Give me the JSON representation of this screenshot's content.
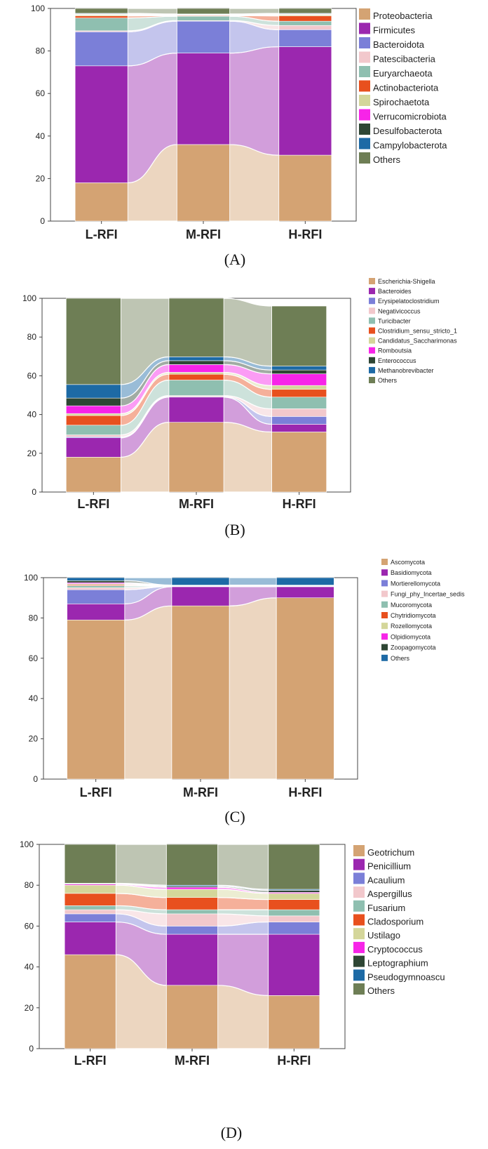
{
  "figure": {
    "panel_labels": [
      "(A)",
      "(B)",
      "(C)",
      "(D)"
    ]
  },
  "chart_data": [
    {
      "type": "area",
      "subtype": "stacked-bar-alluvial",
      "categories": [
        "L-RFI",
        "M-RFI",
        "H-RFI"
      ],
      "ylim": [
        0,
        100
      ],
      "yticks": [
        0,
        20,
        40,
        60,
        80,
        100
      ],
      "legend_position": "right",
      "series": [
        {
          "name": "Proteobacteria",
          "color": "#D4A373",
          "values": [
            18,
            36,
            31
          ]
        },
        {
          "name": "Firmicutes",
          "color": "#9B27AF",
          "values": [
            55,
            43,
            51
          ]
        },
        {
          "name": "Bacteroidota",
          "color": "#7B7FD8",
          "values": [
            16,
            15,
            8
          ]
        },
        {
          "name": "Patescibacteria",
          "color": "#F2C8CC",
          "values": [
            0.5,
            0.3,
            2
          ]
        },
        {
          "name": "Euryarchaeota",
          "color": "#8FBFB0",
          "values": [
            6,
            2,
            2
          ]
        },
        {
          "name": "Actinobacteriota",
          "color": "#E8501E",
          "values": [
            1,
            0.3,
            2.5
          ]
        },
        {
          "name": "Spirochaetota",
          "color": "#D4D69A",
          "values": [
            0.5,
            0.2,
            0.5
          ]
        },
        {
          "name": "Verrucomicrobiota",
          "color": "#F724E8",
          "values": [
            0.2,
            0.2,
            0.2
          ]
        },
        {
          "name": "Desulfobacterota",
          "color": "#2E4634",
          "values": [
            0.2,
            0.2,
            0.2
          ]
        },
        {
          "name": "Campylobacterota",
          "color": "#1D6AA5",
          "values": [
            0.3,
            0.2,
            0.3
          ]
        },
        {
          "name": "Others",
          "color": "#6E7E55",
          "values": [
            2.3,
            2.6,
            2.3
          ]
        }
      ]
    },
    {
      "type": "area",
      "subtype": "stacked-bar-alluvial",
      "categories": [
        "L-RFI",
        "M-RFI",
        "H-RFI"
      ],
      "ylim": [
        0,
        100
      ],
      "yticks": [
        0,
        20,
        40,
        60,
        80,
        100
      ],
      "legend_position": "right",
      "series": [
        {
          "name": "Escherichia-Shigella",
          "color": "#D4A373",
          "values": [
            18,
            36,
            31
          ]
        },
        {
          "name": "Bacteroides",
          "color": "#9B27AF",
          "values": [
            10,
            13,
            4
          ]
        },
        {
          "name": "Erysipelatoclostridium",
          "color": "#7B7FD8",
          "values": [
            0.5,
            0.3,
            4
          ]
        },
        {
          "name": "Negativicoccus",
          "color": "#F2C8CC",
          "values": [
            1,
            0.5,
            4
          ]
        },
        {
          "name": "Turicibacter",
          "color": "#8FBFB0",
          "values": [
            5,
            8,
            6
          ]
        },
        {
          "name": "Clostridium_sensu_stricto_1",
          "color": "#E8501E",
          "values": [
            5,
            3,
            4
          ]
        },
        {
          "name": "Candidatus_Saccharimonas",
          "color": "#D4D69A",
          "values": [
            1,
            1,
            2
          ]
        },
        {
          "name": "Romboutsia",
          "color": "#F724E8",
          "values": [
            4,
            4,
            6
          ]
        },
        {
          "name": "Enterococcus",
          "color": "#2E4634",
          "values": [
            4,
            2,
            2
          ]
        },
        {
          "name": "Methanobrevibacter",
          "color": "#1D6AA5",
          "values": [
            7,
            2,
            2
          ]
        },
        {
          "name": "Others",
          "color": "#6E7E55",
          "values": [
            44.5,
            30.2,
            31
          ]
        }
      ]
    },
    {
      "type": "area",
      "subtype": "stacked-bar-alluvial",
      "categories": [
        "L-RFI",
        "M-RFI",
        "H-RFI"
      ],
      "ylim": [
        0,
        100
      ],
      "yticks": [
        0,
        20,
        40,
        60,
        80,
        100
      ],
      "legend_position": "right",
      "series": [
        {
          "name": "Ascomycota",
          "color": "#D4A373",
          "values": [
            79,
            86,
            90
          ]
        },
        {
          "name": "Basidiomycota",
          "color": "#9B27AF",
          "values": [
            8,
            9.5,
            5.5
          ]
        },
        {
          "name": "Mortierellomycota",
          "color": "#7B7FD8",
          "values": [
            7,
            0.2,
            0.2
          ]
        },
        {
          "name": "Fungi_phy_Incertae_sedis",
          "color": "#F2C8CC",
          "values": [
            1,
            0.1,
            0.1
          ]
        },
        {
          "name": "Mucoromycota",
          "color": "#8FBFB0",
          "values": [
            1,
            0.1,
            0.1
          ]
        },
        {
          "name": "Chytridiomycota",
          "color": "#E8501E",
          "values": [
            0.5,
            0.1,
            0.1
          ]
        },
        {
          "name": "Rozellomycota",
          "color": "#D4D69A",
          "values": [
            0.5,
            0.1,
            0.1
          ]
        },
        {
          "name": "Olpidiomycota",
          "color": "#F724E8",
          "values": [
            0.5,
            0.1,
            0.1
          ]
        },
        {
          "name": "Zoopagomycota",
          "color": "#2E4634",
          "values": [
            1,
            0.1,
            0.1
          ]
        },
        {
          "name": "Others",
          "color": "#1D6AA5",
          "values": [
            1.5,
            3.7,
            3.7
          ]
        }
      ]
    },
    {
      "type": "area",
      "subtype": "stacked-bar-alluvial",
      "categories": [
        "L-RFI",
        "M-RFI",
        "H-RFI"
      ],
      "ylim": [
        0,
        100
      ],
      "yticks": [
        0,
        20,
        40,
        60,
        80,
        100
      ],
      "legend_position": "right",
      "series": [
        {
          "name": "Geotrichum",
          "color": "#D4A373",
          "values": [
            46,
            31,
            26
          ]
        },
        {
          "name": "Penicillium",
          "color": "#9B27AF",
          "values": [
            16,
            25,
            30
          ]
        },
        {
          "name": "Acaulium",
          "color": "#7B7FD8",
          "values": [
            4,
            4,
            6
          ]
        },
        {
          "name": "Aspergillus",
          "color": "#F2C8CC",
          "values": [
            2,
            6,
            3
          ]
        },
        {
          "name": "Fusarium",
          "color": "#8FBFB0",
          "values": [
            2,
            2,
            3
          ]
        },
        {
          "name": "Cladosporium",
          "color": "#E8501E",
          "values": [
            6,
            6,
            5
          ]
        },
        {
          "name": "Ustilago",
          "color": "#D4D69A",
          "values": [
            4,
            4,
            3
          ]
        },
        {
          "name": "Cryptococcus",
          "color": "#F724E8",
          "values": [
            0.5,
            1,
            0.5
          ]
        },
        {
          "name": "Leptographium",
          "color": "#2E4634",
          "values": [
            0.3,
            0.5,
            1
          ]
        },
        {
          "name": "Pseudogymnoascu",
          "color": "#1D6AA5",
          "values": [
            0.2,
            0.5,
            0.5
          ]
        },
        {
          "name": "Others",
          "color": "#6E7E55",
          "values": [
            19,
            20,
            22
          ]
        }
      ]
    }
  ]
}
